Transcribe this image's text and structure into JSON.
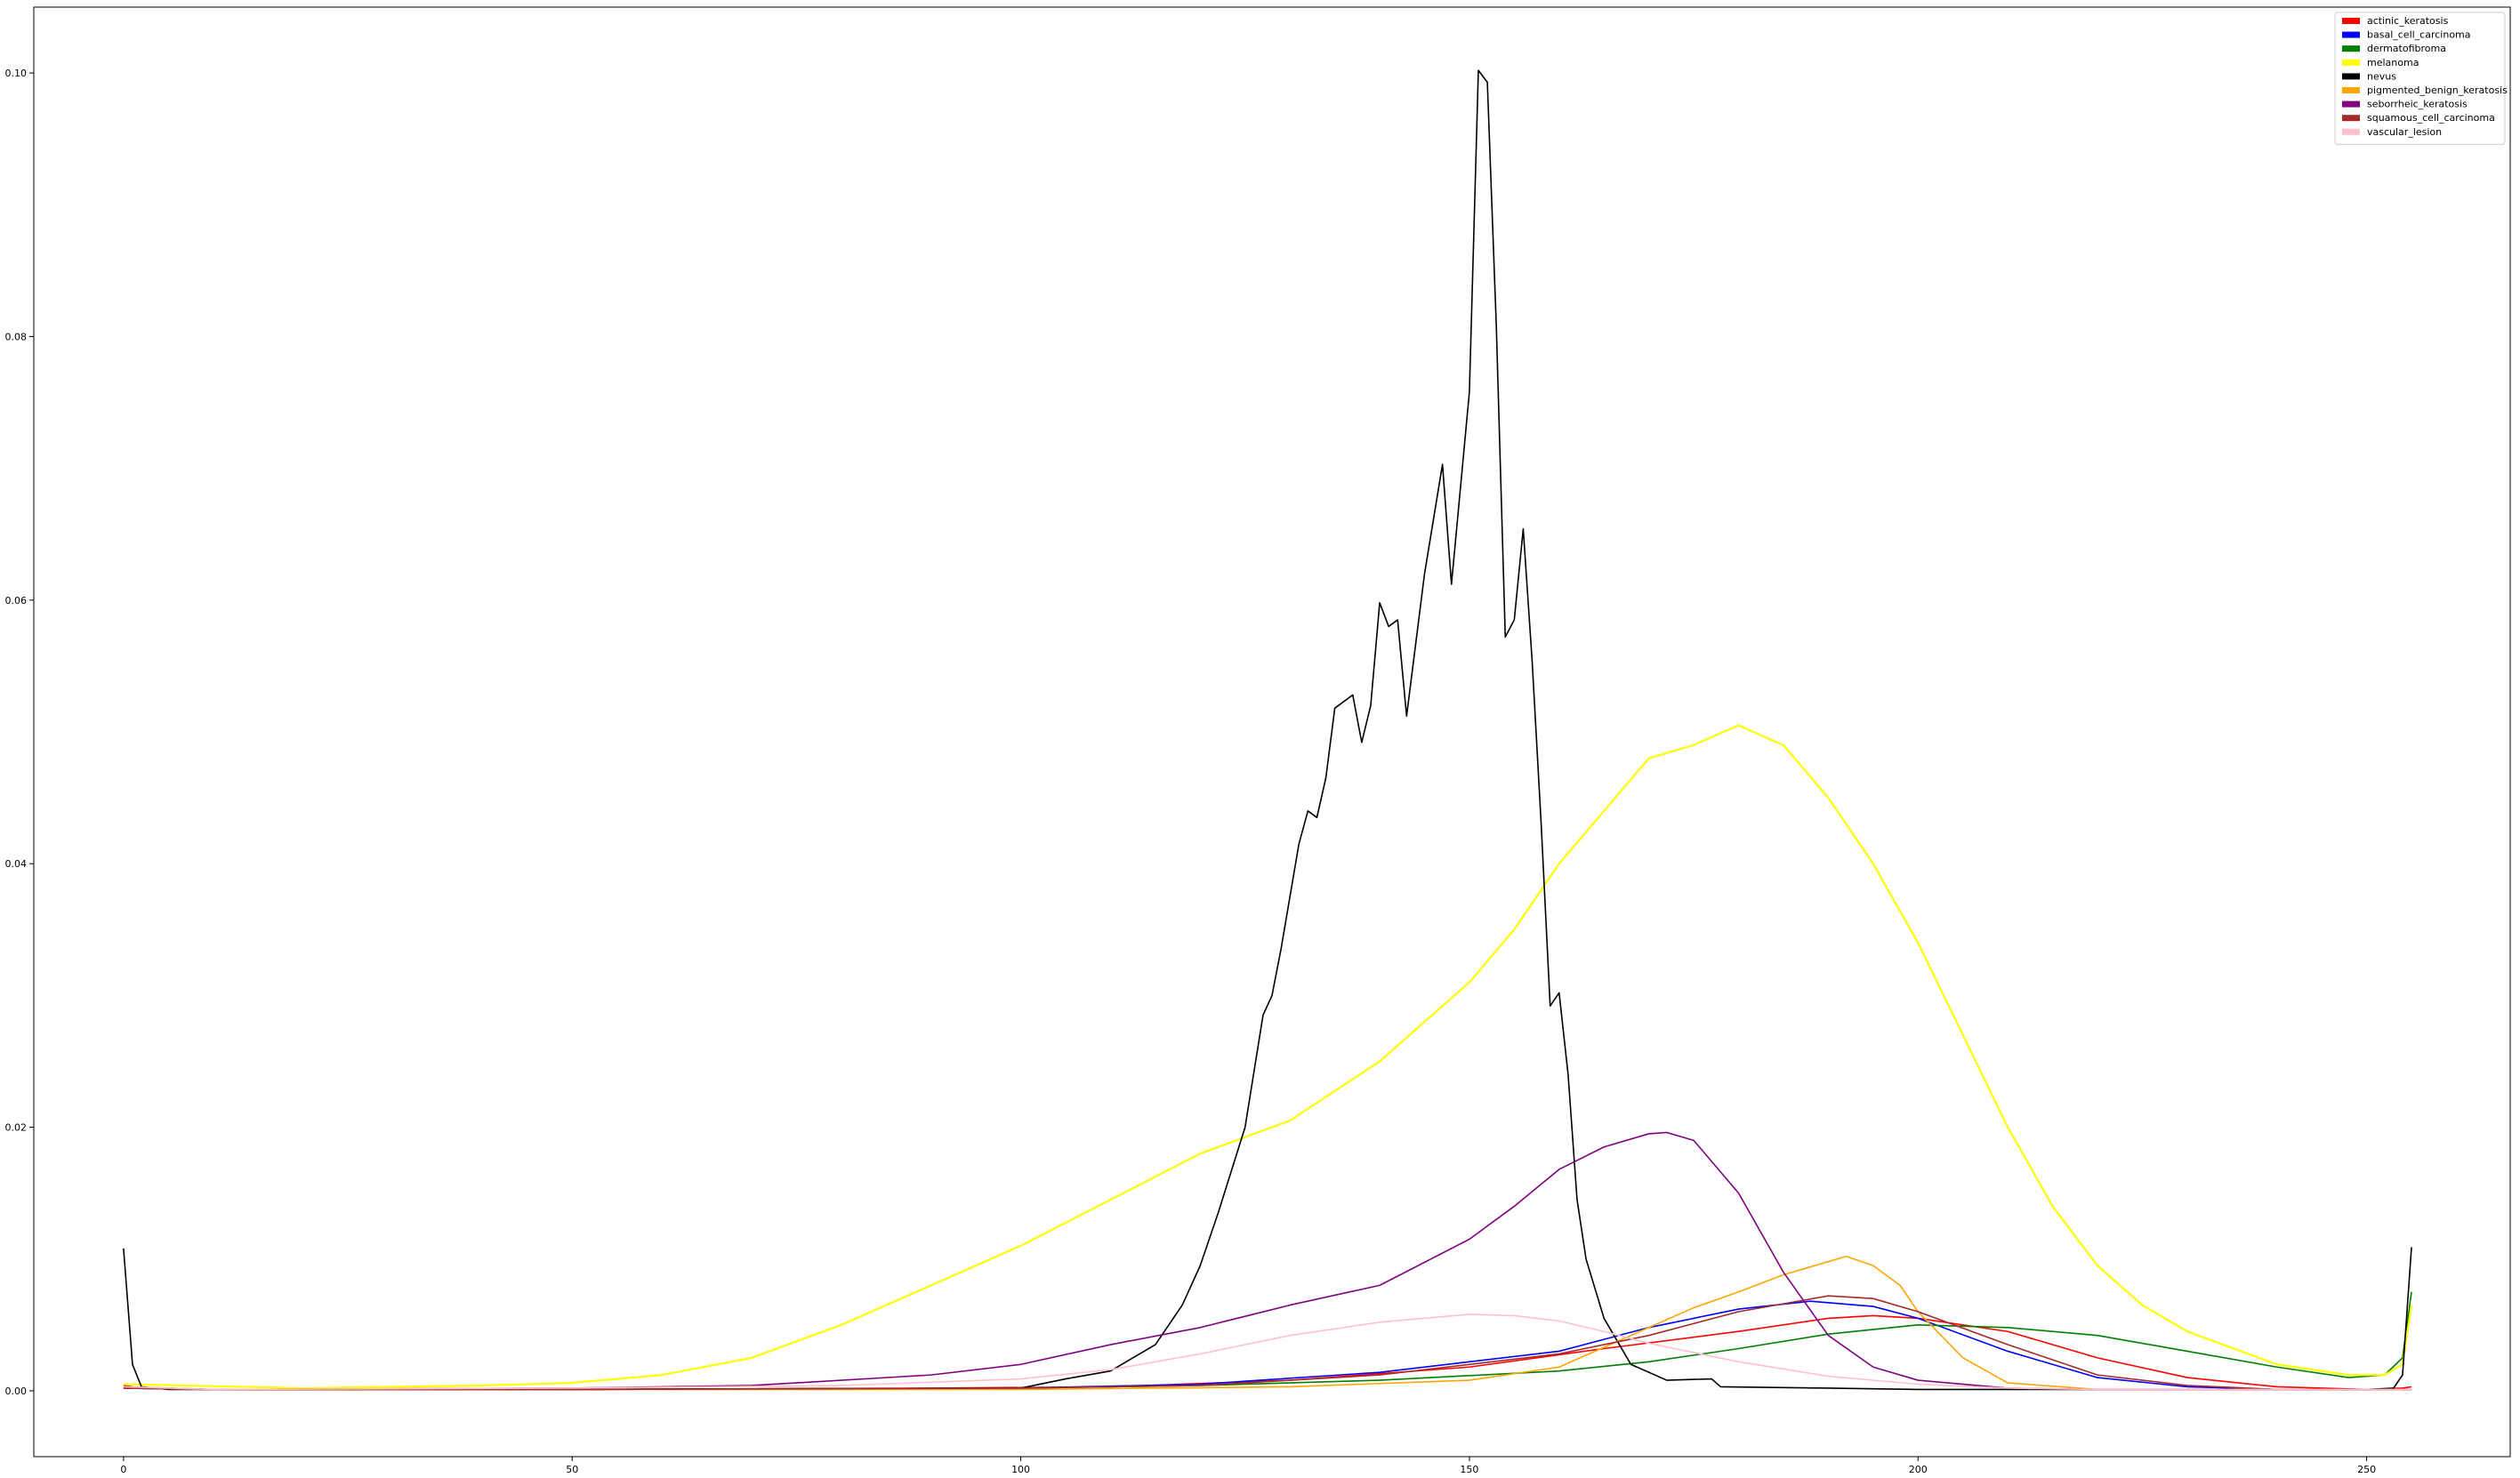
{
  "chart_data": {
    "type": "line",
    "title": "",
    "xlabel": "",
    "ylabel": "",
    "xlim": [
      -10,
      266
    ],
    "ylim": [
      -0.005,
      0.105
    ],
    "xticks": [
      0,
      50,
      100,
      150,
      200,
      250
    ],
    "xtick_labels": [
      "0",
      "50",
      "100",
      "150",
      "200",
      "250"
    ],
    "yticks": [
      0.0,
      0.02,
      0.04,
      0.06,
      0.08,
      0.1
    ],
    "ytick_labels": [
      "0.00",
      "0.02",
      "0.04",
      "0.06",
      "0.08",
      "0.10"
    ],
    "grid": false,
    "legend_position": "top-right",
    "series": [
      {
        "name": "actinic_keratosis",
        "color": "#ff0000",
        "points": [
          [
            0,
            0.0004
          ],
          [
            2,
            0.0002
          ],
          [
            10,
            0.0001
          ],
          [
            50,
            0.0001
          ],
          [
            90,
            0.0002
          ],
          [
            110,
            0.0003
          ],
          [
            130,
            0.0008
          ],
          [
            150,
            0.0018
          ],
          [
            165,
            0.0032
          ],
          [
            180,
            0.0045
          ],
          [
            190,
            0.0055
          ],
          [
            195,
            0.0057
          ],
          [
            200,
            0.0055
          ],
          [
            210,
            0.0045
          ],
          [
            220,
            0.0025
          ],
          [
            230,
            0.001
          ],
          [
            240,
            0.0003
          ],
          [
            250,
            0.0001
          ],
          [
            254,
            0.0002
          ],
          [
            255,
            0.0003
          ]
        ]
      },
      {
        "name": "basal_cell_carcinoma",
        "color": "#0000ff",
        "points": [
          [
            0,
            0.0002
          ],
          [
            10,
            0.0001
          ],
          [
            50,
            0.0001
          ],
          [
            100,
            0.0002
          ],
          [
            120,
            0.0005
          ],
          [
            140,
            0.0014
          ],
          [
            150,
            0.0022
          ],
          [
            160,
            0.003
          ],
          [
            170,
            0.0048
          ],
          [
            180,
            0.0062
          ],
          [
            188,
            0.0068
          ],
          [
            195,
            0.0064
          ],
          [
            200,
            0.0055
          ],
          [
            210,
            0.003
          ],
          [
            220,
            0.001
          ],
          [
            230,
            0.0003
          ],
          [
            240,
            0.0001
          ],
          [
            255,
            0.0001
          ]
        ]
      },
      {
        "name": "dermatofibroma",
        "color": "#008000",
        "points": [
          [
            0,
            0.0003
          ],
          [
            10,
            0.0001
          ],
          [
            50,
            0.0001
          ],
          [
            100,
            0.0002
          ],
          [
            120,
            0.0004
          ],
          [
            140,
            0.0008
          ],
          [
            160,
            0.0015
          ],
          [
            170,
            0.0022
          ],
          [
            180,
            0.0032
          ],
          [
            190,
            0.0043
          ],
          [
            200,
            0.005
          ],
          [
            210,
            0.0048
          ],
          [
            220,
            0.0042
          ],
          [
            230,
            0.003
          ],
          [
            240,
            0.0018
          ],
          [
            248,
            0.001
          ],
          [
            252,
            0.0012
          ],
          [
            254,
            0.0025
          ],
          [
            255,
            0.0075
          ]
        ]
      },
      {
        "name": "melanoma",
        "color": "#ffff00",
        "points": [
          [
            0,
            0.0005
          ],
          [
            20,
            0.0002
          ],
          [
            40,
            0.0004
          ],
          [
            50,
            0.0006
          ],
          [
            60,
            0.0012
          ],
          [
            70,
            0.0025
          ],
          [
            80,
            0.005
          ],
          [
            90,
            0.008
          ],
          [
            100,
            0.011
          ],
          [
            110,
            0.0145
          ],
          [
            120,
            0.018
          ],
          [
            130,
            0.0205
          ],
          [
            140,
            0.025
          ],
          [
            150,
            0.031
          ],
          [
            155,
            0.035
          ],
          [
            160,
            0.04
          ],
          [
            165,
            0.044
          ],
          [
            170,
            0.048
          ],
          [
            175,
            0.049
          ],
          [
            180,
            0.0505
          ],
          [
            185,
            0.049
          ],
          [
            190,
            0.045
          ],
          [
            195,
            0.04
          ],
          [
            200,
            0.034
          ],
          [
            205,
            0.027
          ],
          [
            210,
            0.02
          ],
          [
            215,
            0.014
          ],
          [
            220,
            0.0095
          ],
          [
            225,
            0.0065
          ],
          [
            230,
            0.0045
          ],
          [
            240,
            0.002
          ],
          [
            248,
            0.0012
          ],
          [
            252,
            0.0012
          ],
          [
            254,
            0.002
          ],
          [
            255,
            0.0065
          ]
        ]
      },
      {
        "name": "nevus",
        "color": "#000000",
        "points": [
          [
            0,
            0.0108
          ],
          [
            1,
            0.002
          ],
          [
            2,
            0.0003
          ],
          [
            5,
            0.0001
          ],
          [
            50,
            0.0001
          ],
          [
            100,
            0.0002
          ],
          [
            105,
            0.0009
          ],
          [
            110,
            0.0015
          ],
          [
            115,
            0.0035
          ],
          [
            118,
            0.0065
          ],
          [
            120,
            0.0095
          ],
          [
            122,
            0.0135
          ],
          [
            125,
            0.02
          ],
          [
            127,
            0.0285
          ],
          [
            128,
            0.03
          ],
          [
            129,
            0.0335
          ],
          [
            131,
            0.0415
          ],
          [
            132,
            0.044
          ],
          [
            133,
            0.0435
          ],
          [
            134,
            0.0465
          ],
          [
            135,
            0.0518
          ],
          [
            137,
            0.0528
          ],
          [
            138,
            0.0492
          ],
          [
            139,
            0.052
          ],
          [
            140,
            0.0598
          ],
          [
            141,
            0.058
          ],
          [
            142,
            0.0585
          ],
          [
            143,
            0.0512
          ],
          [
            145,
            0.062
          ],
          [
            147,
            0.0703
          ],
          [
            148,
            0.0612
          ],
          [
            150,
            0.0758
          ],
          [
            151,
            0.1002
          ],
          [
            152,
            0.0993
          ],
          [
            153,
            0.0808
          ],
          [
            154,
            0.0572
          ],
          [
            155,
            0.0585
          ],
          [
            156,
            0.0654
          ],
          [
            157,
            0.0553
          ],
          [
            158,
            0.043
          ],
          [
            159,
            0.0292
          ],
          [
            160,
            0.0302
          ],
          [
            161,
            0.024
          ],
          [
            162,
            0.0145
          ],
          [
            163,
            0.01
          ],
          [
            165,
            0.0055
          ],
          [
            168,
            0.002
          ],
          [
            172,
            0.0008
          ],
          [
            177,
            0.0009
          ],
          [
            178,
            0.0003
          ],
          [
            190,
            0.0002
          ],
          [
            200,
            0.0001
          ],
          [
            250,
            0.0001
          ],
          [
            253,
            0.0002
          ],
          [
            254,
            0.0012
          ],
          [
            255,
            0.0109
          ]
        ]
      },
      {
        "name": "pigmented_benign_keratosis",
        "color": "#ffa500",
        "points": [
          [
            0,
            0.0002
          ],
          [
            10,
            0.0001
          ],
          [
            50,
            0.0001
          ],
          [
            100,
            0.0001
          ],
          [
            130,
            0.0003
          ],
          [
            150,
            0.0008
          ],
          [
            160,
            0.0018
          ],
          [
            170,
            0.0048
          ],
          [
            175,
            0.0063
          ],
          [
            180,
            0.0075
          ],
          [
            185,
            0.0088
          ],
          [
            190,
            0.0098
          ],
          [
            192,
            0.0102
          ],
          [
            195,
            0.0095
          ],
          [
            198,
            0.008
          ],
          [
            200,
            0.006
          ],
          [
            205,
            0.0025
          ],
          [
            210,
            0.0006
          ],
          [
            220,
            0.0001
          ],
          [
            255,
            0.0001
          ]
        ]
      },
      {
        "name": "seborrheic_keratosis",
        "color": "#800080",
        "points": [
          [
            0,
            0.0002
          ],
          [
            10,
            0.0001
          ],
          [
            50,
            0.0002
          ],
          [
            70,
            0.0004
          ],
          [
            90,
            0.0012
          ],
          [
            100,
            0.002
          ],
          [
            110,
            0.0035
          ],
          [
            120,
            0.0048
          ],
          [
            130,
            0.0065
          ],
          [
            140,
            0.008
          ],
          [
            150,
            0.0115
          ],
          [
            155,
            0.014
          ],
          [
            160,
            0.0168
          ],
          [
            165,
            0.0185
          ],
          [
            170,
            0.0195
          ],
          [
            172,
            0.0196
          ],
          [
            175,
            0.019
          ],
          [
            180,
            0.015
          ],
          [
            185,
            0.009
          ],
          [
            190,
            0.0042
          ],
          [
            195,
            0.0018
          ],
          [
            200,
            0.0008
          ],
          [
            210,
            0.0002
          ],
          [
            220,
            0.0001
          ],
          [
            255,
            0.0001
          ]
        ]
      },
      {
        "name": "squamous_cell_carcinoma",
        "color": "#a52a2a",
        "points": [
          [
            0,
            0.0002
          ],
          [
            10,
            0.0001
          ],
          [
            50,
            0.0001
          ],
          [
            100,
            0.0002
          ],
          [
            120,
            0.0004
          ],
          [
            140,
            0.0012
          ],
          [
            150,
            0.002
          ],
          [
            160,
            0.0028
          ],
          [
            170,
            0.0042
          ],
          [
            180,
            0.006
          ],
          [
            190,
            0.0072
          ],
          [
            195,
            0.007
          ],
          [
            200,
            0.006
          ],
          [
            210,
            0.0035
          ],
          [
            220,
            0.0012
          ],
          [
            230,
            0.0004
          ],
          [
            240,
            0.0001
          ],
          [
            255,
            0.0001
          ]
        ]
      },
      {
        "name": "vascular_lesion",
        "color": "#ffc0cb",
        "points": [
          [
            0,
            0.0003
          ],
          [
            10,
            0.0001
          ],
          [
            50,
            0.0002
          ],
          [
            80,
            0.0004
          ],
          [
            100,
            0.0009
          ],
          [
            110,
            0.0016
          ],
          [
            120,
            0.0028
          ],
          [
            130,
            0.0042
          ],
          [
            140,
            0.0052
          ],
          [
            150,
            0.0058
          ],
          [
            155,
            0.0057
          ],
          [
            160,
            0.0053
          ],
          [
            165,
            0.0045
          ],
          [
            170,
            0.0036
          ],
          [
            180,
            0.0022
          ],
          [
            190,
            0.0011
          ],
          [
            200,
            0.0005
          ],
          [
            210,
            0.0002
          ],
          [
            220,
            0.0001
          ],
          [
            255,
            0.0001
          ]
        ]
      }
    ]
  }
}
